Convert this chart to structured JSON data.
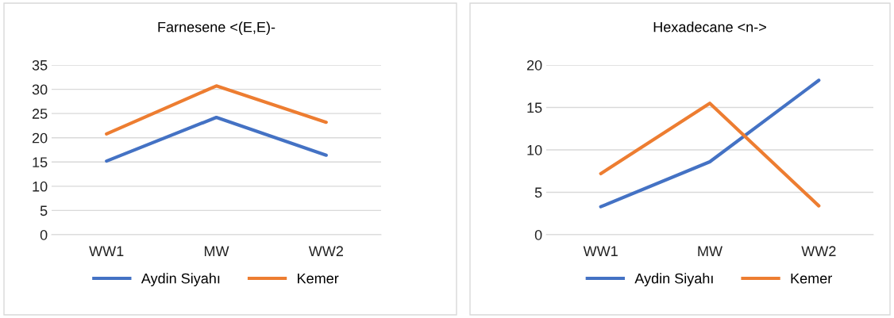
{
  "chart_data": [
    {
      "type": "line",
      "title": "Farnesene <(E,E)-",
      "categories": [
        "WW1",
        "MW",
        "WW2"
      ],
      "ylim": [
        0,
        35
      ],
      "yticks": [
        0,
        5,
        10,
        15,
        20,
        25,
        30,
        35
      ],
      "grid": "y",
      "legend": "bottom",
      "marker": "none",
      "line_style": "solid",
      "series": [
        {
          "name": "Aydin Siyahı",
          "color": "#4472c4",
          "values": [
            15.2,
            24.2,
            16.4
          ]
        },
        {
          "name": "Kemer",
          "color": "#ed7d31",
          "values": [
            20.8,
            30.7,
            23.2
          ]
        }
      ]
    },
    {
      "type": "line",
      "title": "Hexadecane <n->",
      "categories": [
        "WW1",
        "MW",
        "WW2"
      ],
      "ylim": [
        0,
        20
      ],
      "yticks": [
        0,
        5,
        10,
        15,
        20
      ],
      "grid": "y",
      "legend": "bottom",
      "marker": "none",
      "line_style": "solid",
      "series": [
        {
          "name": "Aydin Siyahı",
          "color": "#4472c4",
          "values": [
            3.3,
            8.6,
            18.2
          ]
        },
        {
          "name": "Kemer",
          "color": "#ed7d31",
          "values": [
            7.2,
            15.5,
            3.4
          ]
        }
      ]
    }
  ]
}
